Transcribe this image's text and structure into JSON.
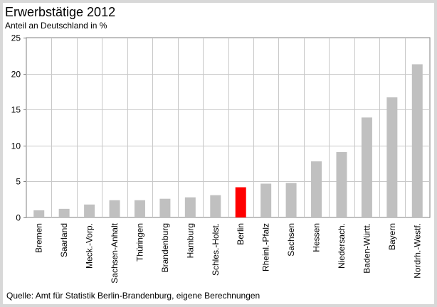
{
  "title": "Erwerbstätige 2012",
  "subtitle": "Anteil an Deutschland in %",
  "source": "Quelle: Amt für Statistik Berlin-Brandenburg,  eigene Berechnungen",
  "colors": {
    "bar": "#c0c0c0",
    "highlight": "#ff0000",
    "grid": "#c8c8c8",
    "axis": "#808080"
  },
  "chart_data": {
    "type": "bar",
    "categories": [
      "Bremen",
      "Saarland",
      "Meck.-Vorp.",
      "Sachsen-Anhalt",
      "Thüringen",
      "Brandenburg",
      "Hamburg",
      "Schles.-Holst.",
      "Berlin",
      "Rheinl.-Pfalz",
      "Sachsen",
      "Hessen",
      "Niedersach.",
      "Baden-Württ.",
      "Bayern",
      "Nordrh.-Westf."
    ],
    "values": [
      1.0,
      1.2,
      1.8,
      2.4,
      2.4,
      2.6,
      2.8,
      3.1,
      4.2,
      4.7,
      4.8,
      7.8,
      9.1,
      13.9,
      16.7,
      21.3
    ],
    "highlight": "Berlin",
    "ylim": [
      0,
      25
    ],
    "yticks": [
      0,
      5,
      10,
      15,
      20,
      25
    ],
    "grid": true
  }
}
